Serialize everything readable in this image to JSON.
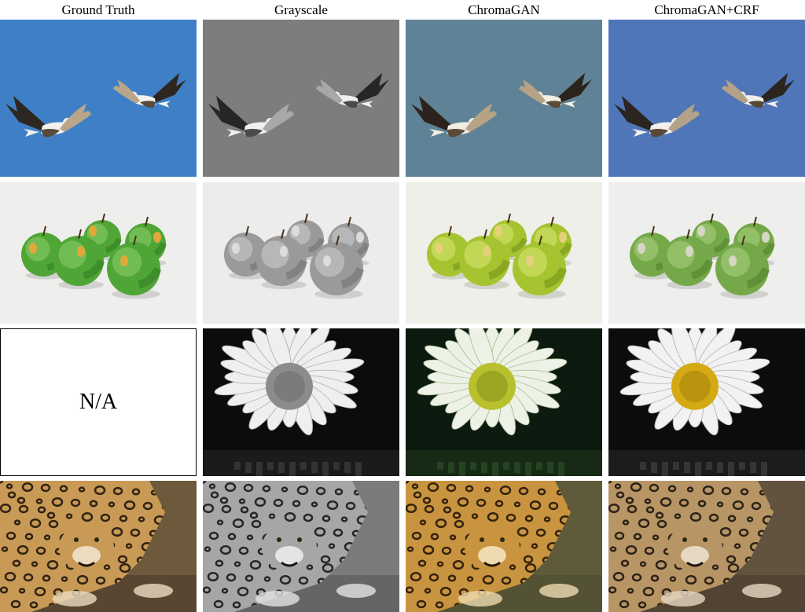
{
  "columns": [
    {
      "id": "ground-truth",
      "label": "Ground Truth"
    },
    {
      "id": "grayscale",
      "label": "Grayscale"
    },
    {
      "id": "chromagan",
      "label": "ChromaGAN"
    },
    {
      "id": "chromagan-crf",
      "label": "ChromaGAN+CRF"
    }
  ],
  "rows": [
    {
      "id": "birds",
      "subject": "birds-in-sky-image"
    },
    {
      "id": "apples",
      "subject": "green-apples-image"
    },
    {
      "id": "daisy",
      "subject": "daisy-flower-image"
    },
    {
      "id": "leopard",
      "subject": "leopard-image"
    }
  ],
  "na_text": "N/A",
  "palettes": {
    "birds": {
      "ground-truth": {
        "bg": "#3f7fc6",
        "body": "#5a4a3a",
        "wing": "#2e2620",
        "white": "#f4f2ee",
        "tail": "#b8a58a"
      },
      "grayscale": {
        "bg": "#7d7d7d",
        "body": "#4a4a4a",
        "wing": "#262626",
        "white": "#f0f0f0",
        "tail": "#a8a8a8"
      },
      "chromagan": {
        "bg": "#5f8296",
        "body": "#5b4a38",
        "wing": "#2c241c",
        "white": "#f2eee4",
        "tail": "#b6a386"
      },
      "chromagan-crf": {
        "bg": "#4f76b8",
        "body": "#574838",
        "wing": "#2c241e",
        "white": "#f2f0ec",
        "tail": "#b3a188"
      }
    },
    "apples": {
      "ground-truth": {
        "bg": "#eeeeec",
        "apple": "#4fa636",
        "hi": "#8fd06c",
        "shade": "#2f7420",
        "label": "#e0a83a"
      },
      "grayscale": {
        "bg": "#ececec",
        "apple": "#9a9a9a",
        "hi": "#cfcfcf",
        "shade": "#6a6a6a",
        "label": "#dcdcdc"
      },
      "chromagan": {
        "bg": "#efefe9",
        "apple": "#a6c430",
        "hi": "#d8e874",
        "shade": "#6d8a16",
        "label": "#e6d07a"
      },
      "chromagan-crf": {
        "bg": "#eeeeec",
        "apple": "#74a848",
        "hi": "#acd282",
        "shade": "#4a7a2a",
        "label": "#d6d6c4"
      }
    },
    "daisy": {
      "grayscale": {
        "bg": "#0c0c0c",
        "petal": "#efefef",
        "petal_edge": "#b4b4b4",
        "center": "#8c8c8c",
        "center_dot": "#6a6a6a",
        "reflect": "#3a3a3a"
      },
      "chromagan": {
        "bg": "#0d1a0f",
        "petal": "#eef2e6",
        "petal_edge": "#a9c39a",
        "center": "#b8c02e",
        "center_dot": "#7e8a18",
        "reflect": "#284a24"
      },
      "chromagan-crf": {
        "bg": "#0c0c0c",
        "petal": "#f2f2f2",
        "petal_edge": "#b8b8b8",
        "center": "#d4aa14",
        "center_dot": "#a07c08",
        "reflect": "#3c3c3c"
      }
    },
    "leopard": {
      "ground-truth": {
        "bg": "#6d5a3d",
        "fur": "#c89a55",
        "spot": "#1f150c",
        "light": "#ecdcc0",
        "ground": "#584632"
      },
      "grayscale": {
        "bg": "#7b7b7b",
        "fur": "#a6a6a6",
        "spot": "#181818",
        "light": "#e4e4e4",
        "ground": "#656565"
      },
      "chromagan": {
        "bg": "#5f5a3a",
        "fur": "#c99440",
        "spot": "#241607",
        "light": "#eedbb0",
        "ground": "#545234"
      },
      "chromagan-crf": {
        "bg": "#625240",
        "fur": "#b79564",
        "spot": "#1d150e",
        "light": "#e6d8c2",
        "ground": "#524434"
      }
    }
  }
}
